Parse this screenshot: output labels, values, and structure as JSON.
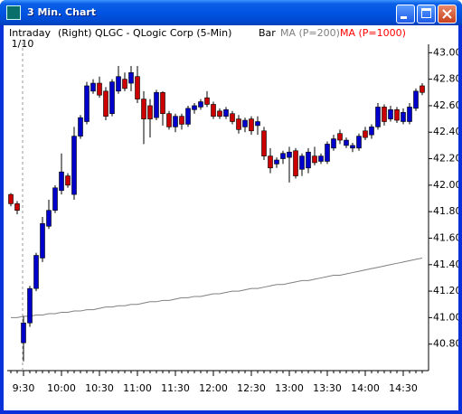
{
  "window_title": "3 Min. Chart",
  "header": {
    "mode": "Intraday",
    "symbol": "(Right) QLGC - QLogic Corp (5-Min)",
    "style": "Bar"
  },
  "chart_data": {
    "type": "candlestick",
    "annotation": "1/10",
    "categories": [
      null,
      null,
      "9:30",
      null,
      null,
      null,
      null,
      null,
      "10:00",
      null,
      null,
      null,
      null,
      null,
      "10:30",
      null,
      null,
      null,
      null,
      null,
      "11:00",
      null,
      null,
      null,
      null,
      null,
      "11:30",
      null,
      null,
      null,
      null,
      null,
      "12:00",
      null,
      null,
      null,
      null,
      null,
      "12:30",
      null,
      null,
      null,
      null,
      null,
      "13:00",
      null,
      null,
      null,
      null,
      null,
      "13:30",
      null,
      null,
      null,
      null,
      null,
      "14:00",
      null,
      null,
      null,
      null,
      null,
      "14:30",
      null,
      null,
      null
    ],
    "open": [
      41.93,
      41.86,
      40.81,
      40.96,
      41.22,
      41.45,
      41.69,
      41.81,
      41.96,
      42.07,
      41.93,
      42.37,
      42.48,
      42.71,
      42.77,
      42.71,
      42.54,
      42.71,
      42.8,
      42.77,
      42.82,
      42.65,
      42.6,
      42.51,
      42.7,
      42.54,
      42.44,
      42.52,
      42.46,
      42.57,
      42.59,
      42.66,
      42.61,
      42.56,
      42.52,
      42.54,
      42.5,
      42.44,
      42.5,
      42.45,
      42.41,
      42.22,
      42.16,
      42.2,
      42.21,
      42.26,
      42.12,
      42.13,
      42.22,
      42.18,
      42.18,
      42.28,
      42.39,
      42.3,
      42.28,
      42.28,
      42.41,
      42.38,
      42.44,
      42.59,
      42.5,
      42.57,
      42.48,
      42.48,
      42.58,
      42.75
    ],
    "high": [
      41.94,
      41.88,
      41.01,
      41.24,
      41.49,
      41.76,
      41.89,
      42.0,
      42.24,
      42.09,
      42.44,
      42.53,
      42.78,
      42.8,
      42.82,
      42.74,
      42.8,
      42.9,
      42.85,
      42.9,
      42.9,
      42.71,
      42.65,
      42.72,
      42.71,
      42.56,
      42.54,
      42.54,
      42.6,
      42.62,
      42.65,
      42.71,
      42.63,
      42.58,
      42.59,
      42.56,
      42.53,
      42.51,
      42.52,
      42.52,
      42.44,
      42.28,
      42.21,
      42.26,
      42.29,
      42.28,
      42.24,
      42.28,
      42.29,
      42.24,
      42.33,
      42.38,
      42.42,
      42.36,
      42.32,
      42.39,
      42.44,
      42.46,
      42.62,
      42.61,
      42.6,
      42.59,
      42.58,
      42.62,
      42.73,
      42.77
    ],
    "low": [
      41.84,
      41.78,
      40.67,
      40.93,
      41.2,
      41.42,
      41.67,
      41.79,
      41.93,
      41.98,
      41.89,
      42.35,
      42.46,
      42.69,
      42.66,
      42.49,
      42.52,
      42.69,
      42.71,
      42.71,
      42.62,
      42.31,
      42.36,
      42.49,
      42.45,
      42.42,
      42.4,
      42.42,
      42.44,
      42.54,
      42.57,
      42.59,
      42.5,
      42.5,
      42.5,
      42.46,
      42.39,
      42.4,
      42.38,
      42.38,
      42.19,
      42.09,
      42.13,
      42.16,
      42.02,
      42.05,
      42.07,
      42.09,
      42.15,
      42.16,
      42.16,
      42.26,
      42.31,
      42.28,
      42.25,
      42.26,
      42.34,
      42.35,
      42.42,
      42.45,
      42.48,
      42.47,
      42.46,
      42.46,
      42.56,
      42.68
    ],
    "close": [
      41.86,
      41.81,
      40.96,
      41.22,
      41.47,
      41.71,
      41.81,
      41.98,
      42.1,
      42.0,
      42.37,
      42.51,
      42.75,
      42.77,
      42.68,
      42.52,
      42.78,
      42.82,
      42.73,
      42.85,
      42.65,
      42.5,
      42.5,
      42.7,
      42.54,
      42.44,
      42.52,
      42.46,
      42.58,
      42.6,
      42.63,
      42.61,
      42.52,
      42.52,
      42.57,
      42.48,
      42.42,
      42.49,
      42.41,
      42.48,
      42.22,
      42.13,
      42.19,
      42.24,
      42.25,
      42.07,
      42.22,
      42.25,
      42.17,
      42.22,
      42.31,
      42.35,
      42.34,
      42.34,
      42.3,
      42.37,
      42.36,
      42.44,
      42.59,
      42.48,
      42.57,
      42.49,
      42.55,
      42.59,
      42.71,
      42.7
    ],
    "up_color": "#0000cc",
    "down_color": "#cc0000",
    "series": [
      {
        "name": "MA (P=200)",
        "color": "#808080",
        "values": [
          41.0,
          41.0,
          41.01,
          41.01,
          41.02,
          41.02,
          41.03,
          41.03,
          41.04,
          41.04,
          41.05,
          41.05,
          41.06,
          41.06,
          41.07,
          41.08,
          41.08,
          41.09,
          41.09,
          41.1,
          41.1,
          41.11,
          41.12,
          41.12,
          41.13,
          41.13,
          41.14,
          41.15,
          41.15,
          41.16,
          41.16,
          41.17,
          41.18,
          41.18,
          41.19,
          41.2,
          41.2,
          41.21,
          41.22,
          41.22,
          41.23,
          41.24,
          41.25,
          41.25,
          41.26,
          41.27,
          41.28,
          41.28,
          41.29,
          41.3,
          41.31,
          41.32,
          41.32,
          41.33,
          41.34,
          41.35,
          41.36,
          41.37,
          41.38,
          41.39,
          41.4,
          41.41,
          41.42,
          41.43,
          41.44,
          41.45
        ]
      },
      {
        "name": "MA (P=1000)",
        "color": "#ff0000"
      }
    ],
    "ylim": [
      40.6,
      43.05
    ],
    "yticks": [
      {
        "value": 40.8,
        "label": "40.80"
      },
      {
        "value": 41,
        "label": "41.00"
      },
      {
        "value": 41.2,
        "label": "41.20"
      },
      {
        "value": 41.4,
        "label": "41.40"
      },
      {
        "value": 41.6,
        "label": "41.60"
      },
      {
        "value": 41.8,
        "label": "41.80"
      },
      {
        "value": 42,
        "label": "42.00"
      },
      {
        "value": 42.2,
        "label": "42.20"
      },
      {
        "value": 42.4,
        "label": "42.40"
      },
      {
        "value": 42.6,
        "label": "42.60"
      },
      {
        "value": 42.8,
        "label": "42.80"
      },
      {
        "value": 43,
        "label": "43.00"
      }
    ]
  }
}
